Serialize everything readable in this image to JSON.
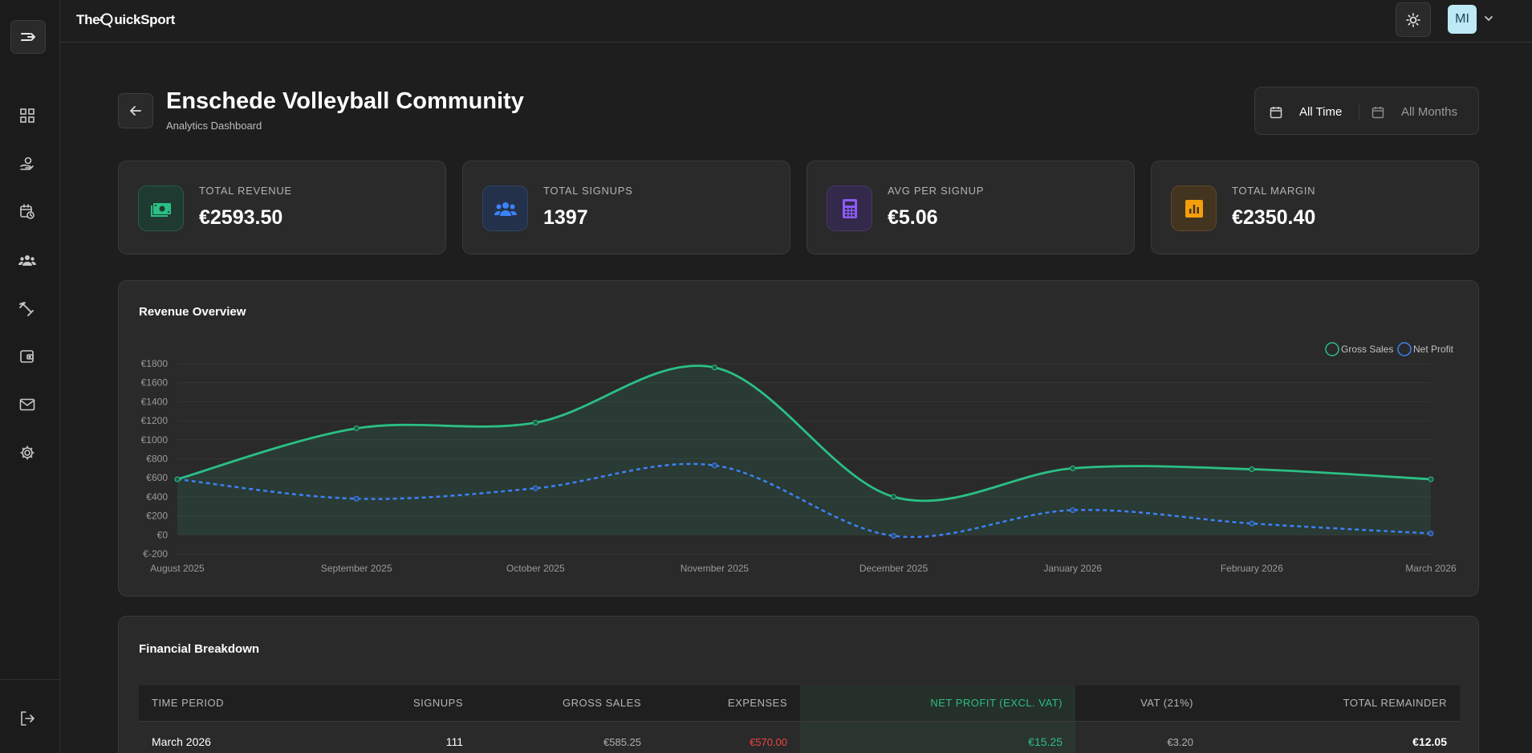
{
  "brand": {
    "prefix": "The",
    "q": "Q",
    "suffix": "uickSport"
  },
  "user": {
    "initials": "MI"
  },
  "page": {
    "title": "Enschede Volleyball Community",
    "subtitle": "Analytics Dashboard"
  },
  "date_filter": {
    "period": "All Time",
    "months": "All Months"
  },
  "stats": [
    {
      "label": "TOTAL REVENUE",
      "value": "€2593.50",
      "icon": "money-icon",
      "color": "#2bbf85",
      "bg": "#1f3b31"
    },
    {
      "label": "TOTAL SIGNUPS",
      "value": "1397",
      "icon": "users-icon",
      "color": "#3b82f6",
      "bg": "#24314a"
    },
    {
      "label": "AVG PER SIGNUP",
      "value": "€5.06",
      "icon": "calculator-icon",
      "color": "#8b5cf6",
      "bg": "#33294a"
    },
    {
      "label": "TOTAL MARGIN",
      "value": "€2350.40",
      "icon": "chart-icon",
      "color": "#f59e0b",
      "bg": "#433420"
    }
  ],
  "revenue_panel": {
    "title": "Revenue Overview"
  },
  "chart_data": {
    "type": "line",
    "x": [
      "August 2025",
      "September 2025",
      "October 2025",
      "November 2025",
      "December 2025",
      "January 2026",
      "February 2026",
      "March 2026"
    ],
    "series": [
      {
        "name": "Gross Sales",
        "values": [
          585,
          1120,
          1180,
          1760,
          400,
          700,
          690,
          585
        ],
        "color": "#2bbf85"
      },
      {
        "name": "Net Profit",
        "values": [
          585,
          380,
          490,
          730,
          -10,
          260,
          120,
          15
        ],
        "color": "#3b82f6"
      }
    ],
    "ylim": [
      -200,
      1800
    ],
    "yticks": [
      "€-200",
      "€0",
      "€200",
      "€400",
      "€600",
      "€800",
      "€1000",
      "€1200",
      "€1400",
      "€1600",
      "€1800"
    ],
    "legend": "top-right",
    "grid": true
  },
  "breakdown": {
    "title": "Financial Breakdown",
    "headers": [
      "TIME PERIOD",
      "SIGNUPS",
      "GROSS SALES",
      "EXPENSES",
      "NET PROFIT (EXCL. VAT)",
      "VAT (21%)",
      "TOTAL REMAINDER"
    ],
    "rows": [
      [
        "March 2026",
        "111",
        "€585.25",
        "€570.00",
        "€15.25",
        "€3.20",
        "€12.05"
      ]
    ],
    "colors": {
      "expenses": "#ef4444",
      "profit": "#2bbf85"
    }
  }
}
